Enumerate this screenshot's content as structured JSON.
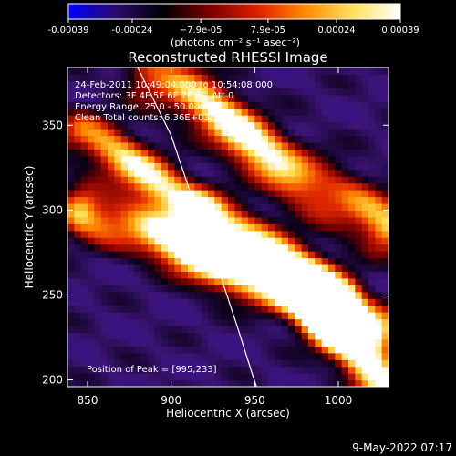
{
  "chart_data": {
    "type": "heatmap",
    "title": "Reconstructed RHESSI Image",
    "xlabel": "Heliocentric X (arcsec)",
    "ylabel": "Heliocentric Y (arcsec)",
    "xlim": [
      838,
      1030
    ],
    "ylim": [
      196,
      384
    ],
    "x_ticks": [
      850,
      900,
      950,
      1000
    ],
    "y_ticks": [
      200,
      250,
      300,
      350
    ],
    "colorbar": {
      "min": -0.00039,
      "max": 0.00039,
      "tick_values": [
        -0.00039,
        -0.00024,
        -7.9e-05,
        7.9e-05,
        0.00024,
        0.00039
      ],
      "tick_labels": [
        "-0.00039",
        "-0.00024",
        "−7.9e-05",
        "7.9e-05",
        "0.00024",
        "0.00039"
      ],
      "unit_label": "(photons cm⁻² s⁻¹ asec⁻²)",
      "colormap": [
        "#0000ff",
        "#2a0a6a",
        "#000000",
        "#7a0000",
        "#e02000",
        "#ff8c00",
        "#ffe060",
        "#ffffff"
      ]
    },
    "annotations": [
      "24-Feb-2011 10:49:04.000 to 10:54:08.000",
      "Detectors: 3F 4F 5F 6F 7F 8F, Att 0",
      "Energy Range: 25.0 - 50.0 keV",
      "Clean    Total counts: 6.36E+03"
    ],
    "peak_label": "Position of Peak = [995,233]",
    "peak": [
      995,
      233
    ],
    "limb_curve": [
      [
        880,
        384
      ],
      [
        900,
        344
      ],
      [
        915,
        300
      ],
      [
        930,
        260
      ],
      [
        940,
        230
      ],
      [
        948,
        205
      ],
      [
        951,
        196
      ]
    ],
    "hot_ridges": [
      {
        "x1": 845,
        "y1": 345,
        "x2": 1000,
        "y2": 250,
        "amp": 0.7,
        "width": 10
      },
      {
        "x1": 890,
        "y1": 380,
        "x2": 1025,
        "y2": 290,
        "amp": 0.8,
        "width": 11
      },
      {
        "x1": 850,
        "y1": 300,
        "x2": 1025,
        "y2": 230,
        "amp": 0.9,
        "width": 10
      },
      {
        "x1": 920,
        "y1": 300,
        "x2": 1025,
        "y2": 200,
        "amp": 0.75,
        "width": 9
      }
    ]
  },
  "footer": {
    "timestamp": "9-May-2022 07:17"
  }
}
